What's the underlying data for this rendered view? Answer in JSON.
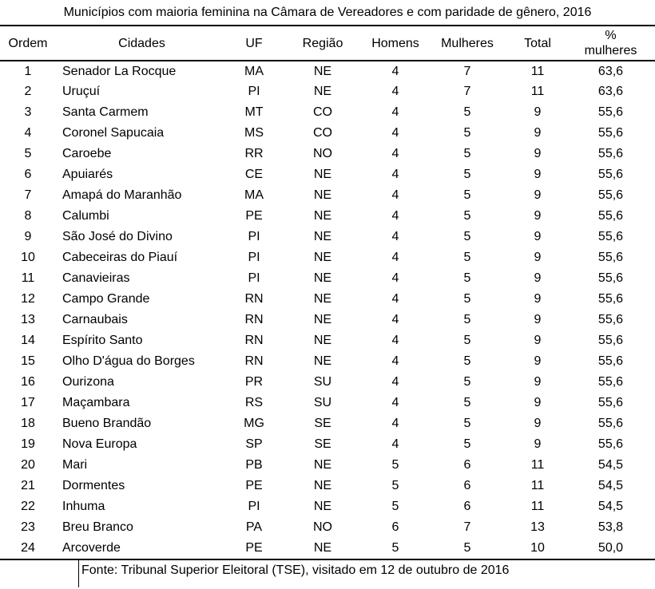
{
  "title": "Municípios com maioria feminina na Câmara de Vereadores e com paridade de gênero, 2016",
  "source_note": "Fonte: Tribunal Superior Eleitoral (TSE), visitado em 12 de outubro de 2016",
  "colors": {
    "background": "#ffffff",
    "text": "#000000",
    "rule": "#000000"
  },
  "chart_data": {
    "type": "table",
    "title": "Municípios com maioria feminina na Câmara de Vereadores e com paridade de gênero, 2016",
    "columns": [
      "Ordem",
      "Cidades",
      "UF",
      "Região",
      "Homens",
      "Mulheres",
      "Total",
      "% mulheres"
    ],
    "rows": [
      [
        "1",
        "Senador La Rocque",
        "MA",
        "NE",
        "4",
        "7",
        "11",
        "63,6"
      ],
      [
        "2",
        "Uruçuí",
        "PI",
        "NE",
        "4",
        "7",
        "11",
        "63,6"
      ],
      [
        "3",
        "Santa Carmem",
        "MT",
        "CO",
        "4",
        "5",
        "9",
        "55,6"
      ],
      [
        "4",
        "Coronel Sapucaia",
        "MS",
        "CO",
        "4",
        "5",
        "9",
        "55,6"
      ],
      [
        "5",
        "Caroebe",
        "RR",
        "NO",
        "4",
        "5",
        "9",
        "55,6"
      ],
      [
        "6",
        "Apuiarés",
        "CE",
        "NE",
        "4",
        "5",
        "9",
        "55,6"
      ],
      [
        "7",
        "Amapá do Maranhão",
        "MA",
        "NE",
        "4",
        "5",
        "9",
        "55,6"
      ],
      [
        "8",
        "Calumbi",
        "PE",
        "NE",
        "4",
        "5",
        "9",
        "55,6"
      ],
      [
        "9",
        "São José do Divino",
        "PI",
        "NE",
        "4",
        "5",
        "9",
        "55,6"
      ],
      [
        "10",
        "Cabeceiras do Piauí",
        "PI",
        "NE",
        "4",
        "5",
        "9",
        "55,6"
      ],
      [
        "11",
        "Canavieiras",
        "PI",
        "NE",
        "4",
        "5",
        "9",
        "55,6"
      ],
      [
        "12",
        "Campo Grande",
        "RN",
        "NE",
        "4",
        "5",
        "9",
        "55,6"
      ],
      [
        "13",
        "Carnaubais",
        "RN",
        "NE",
        "4",
        "5",
        "9",
        "55,6"
      ],
      [
        "14",
        "Espírito Santo",
        "RN",
        "NE",
        "4",
        "5",
        "9",
        "55,6"
      ],
      [
        "15",
        "Olho D'água do Borges",
        "RN",
        "NE",
        "4",
        "5",
        "9",
        "55,6"
      ],
      [
        "16",
        "Ourizona",
        "PR",
        "SU",
        "4",
        "5",
        "9",
        "55,6"
      ],
      [
        "17",
        "Maçambara",
        "RS",
        "SU",
        "4",
        "5",
        "9",
        "55,6"
      ],
      [
        "18",
        "Bueno Brandão",
        "MG",
        "SE",
        "4",
        "5",
        "9",
        "55,6"
      ],
      [
        "19",
        "Nova Europa",
        "SP",
        "SE",
        "4",
        "5",
        "9",
        "55,6"
      ],
      [
        "20",
        "Mari",
        "PB",
        "NE",
        "5",
        "6",
        "11",
        "54,5"
      ],
      [
        "21",
        "Dormentes",
        "PE",
        "NE",
        "5",
        "6",
        "11",
        "54,5"
      ],
      [
        "22",
        "Inhuma",
        "PI",
        "NE",
        "5",
        "6",
        "11",
        "54,5"
      ],
      [
        "23",
        "Breu Branco",
        "PA",
        "NO",
        "6",
        "7",
        "13",
        "53,8"
      ],
      [
        "24",
        "Arcoverde",
        "PE",
        "NE",
        "5",
        "5",
        "10",
        "50,0"
      ]
    ],
    "source_note": "Fonte: Tribunal Superior Eleitoral (TSE), visitado em 12 de outubro de 2016"
  }
}
